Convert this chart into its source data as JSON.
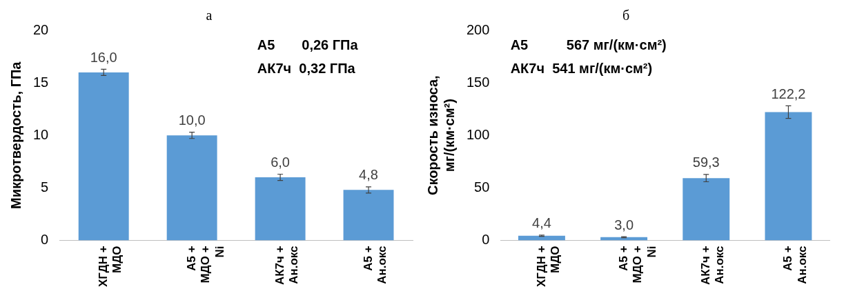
{
  "chart_data": [
    {
      "type": "bar",
      "title": "а",
      "ylabel": "Микротвердость, ГПа",
      "categories": [
        "ХГДН + МДО",
        "А5 + МДО + Ni",
        "АК7ч + Ан.окс",
        "А5 + Ан.окс"
      ],
      "values": [
        16.0,
        10.0,
        6.0,
        4.8
      ],
      "value_labels": [
        "16,0",
        "10,0",
        "6,0",
        "4,8"
      ],
      "errors": [
        0.3,
        0.3,
        0.3,
        0.3
      ],
      "color": "#5b9bd5",
      "ylim": [
        0,
        20
      ],
      "yticks": [
        0,
        5,
        10,
        15,
        20
      ],
      "grid": false,
      "annotations": [
        "А5       0,26 ГПа",
        "АК7ч  0,32 ГПа"
      ]
    },
    {
      "type": "bar",
      "title": "б",
      "ylabel": "Скорость износа, мг/(км·см²)",
      "categories": [
        "ХГДН + МДО",
        "А5 + МДО + Ni",
        "АК7ч + Ан.окс",
        "А5 + Ан.окс"
      ],
      "values": [
        4.4,
        3.0,
        59.3,
        122.2
      ],
      "value_labels": [
        "4,4",
        "3,0",
        "59,3",
        "122,2"
      ],
      "errors": [
        0.6,
        0.5,
        3.5,
        6
      ],
      "color": "#5b9bd5",
      "ylim": [
        0,
        200
      ],
      "yticks": [
        0,
        50,
        100,
        150,
        200
      ],
      "grid": false,
      "annotations": [
        "А5          567 мг/(км·см²)",
        "АК7ч  541 мг/(км·см²)"
      ]
    }
  ]
}
